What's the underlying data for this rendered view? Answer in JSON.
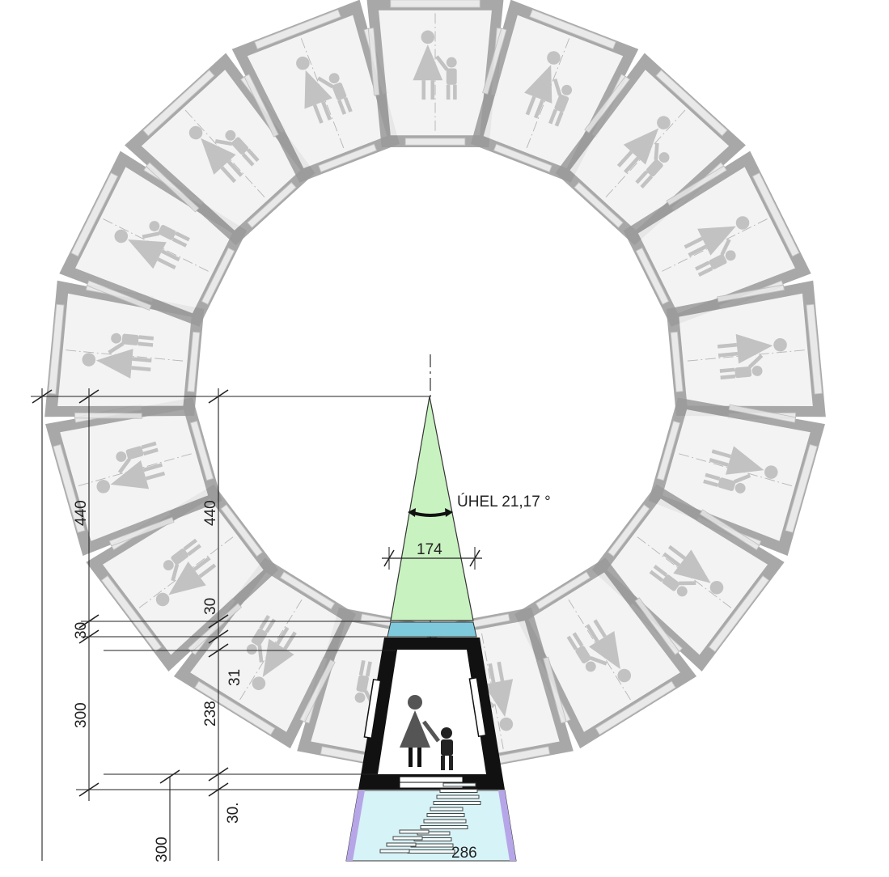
{
  "drawing": {
    "angle_label": "ÚHEL 21,17 °",
    "dimensions": {
      "width_top": "174",
      "height_left_outer": "440",
      "height_left_inner": "440",
      "dim_30_upper": "30",
      "dim_30_left": "30",
      "dim_31": "31",
      "dim_238": "238",
      "dim_300": "300",
      "dim_30_lower": "30.",
      "dim_300_bottom": "300",
      "dim_286": "286"
    },
    "colors": {
      "wedge_fill": "#c9f2c1",
      "band_fill": "#7fc9dc",
      "ramp_fill": "#d6f3f7",
      "ramp_edge": "#b6a6e8",
      "module_grey": "#9a9a9a",
      "module_light": "#c8c8c8",
      "wall_black": "#111111"
    },
    "icons": [
      "woman-with-child-icon",
      "arrow-both-ways-icon"
    ]
  }
}
